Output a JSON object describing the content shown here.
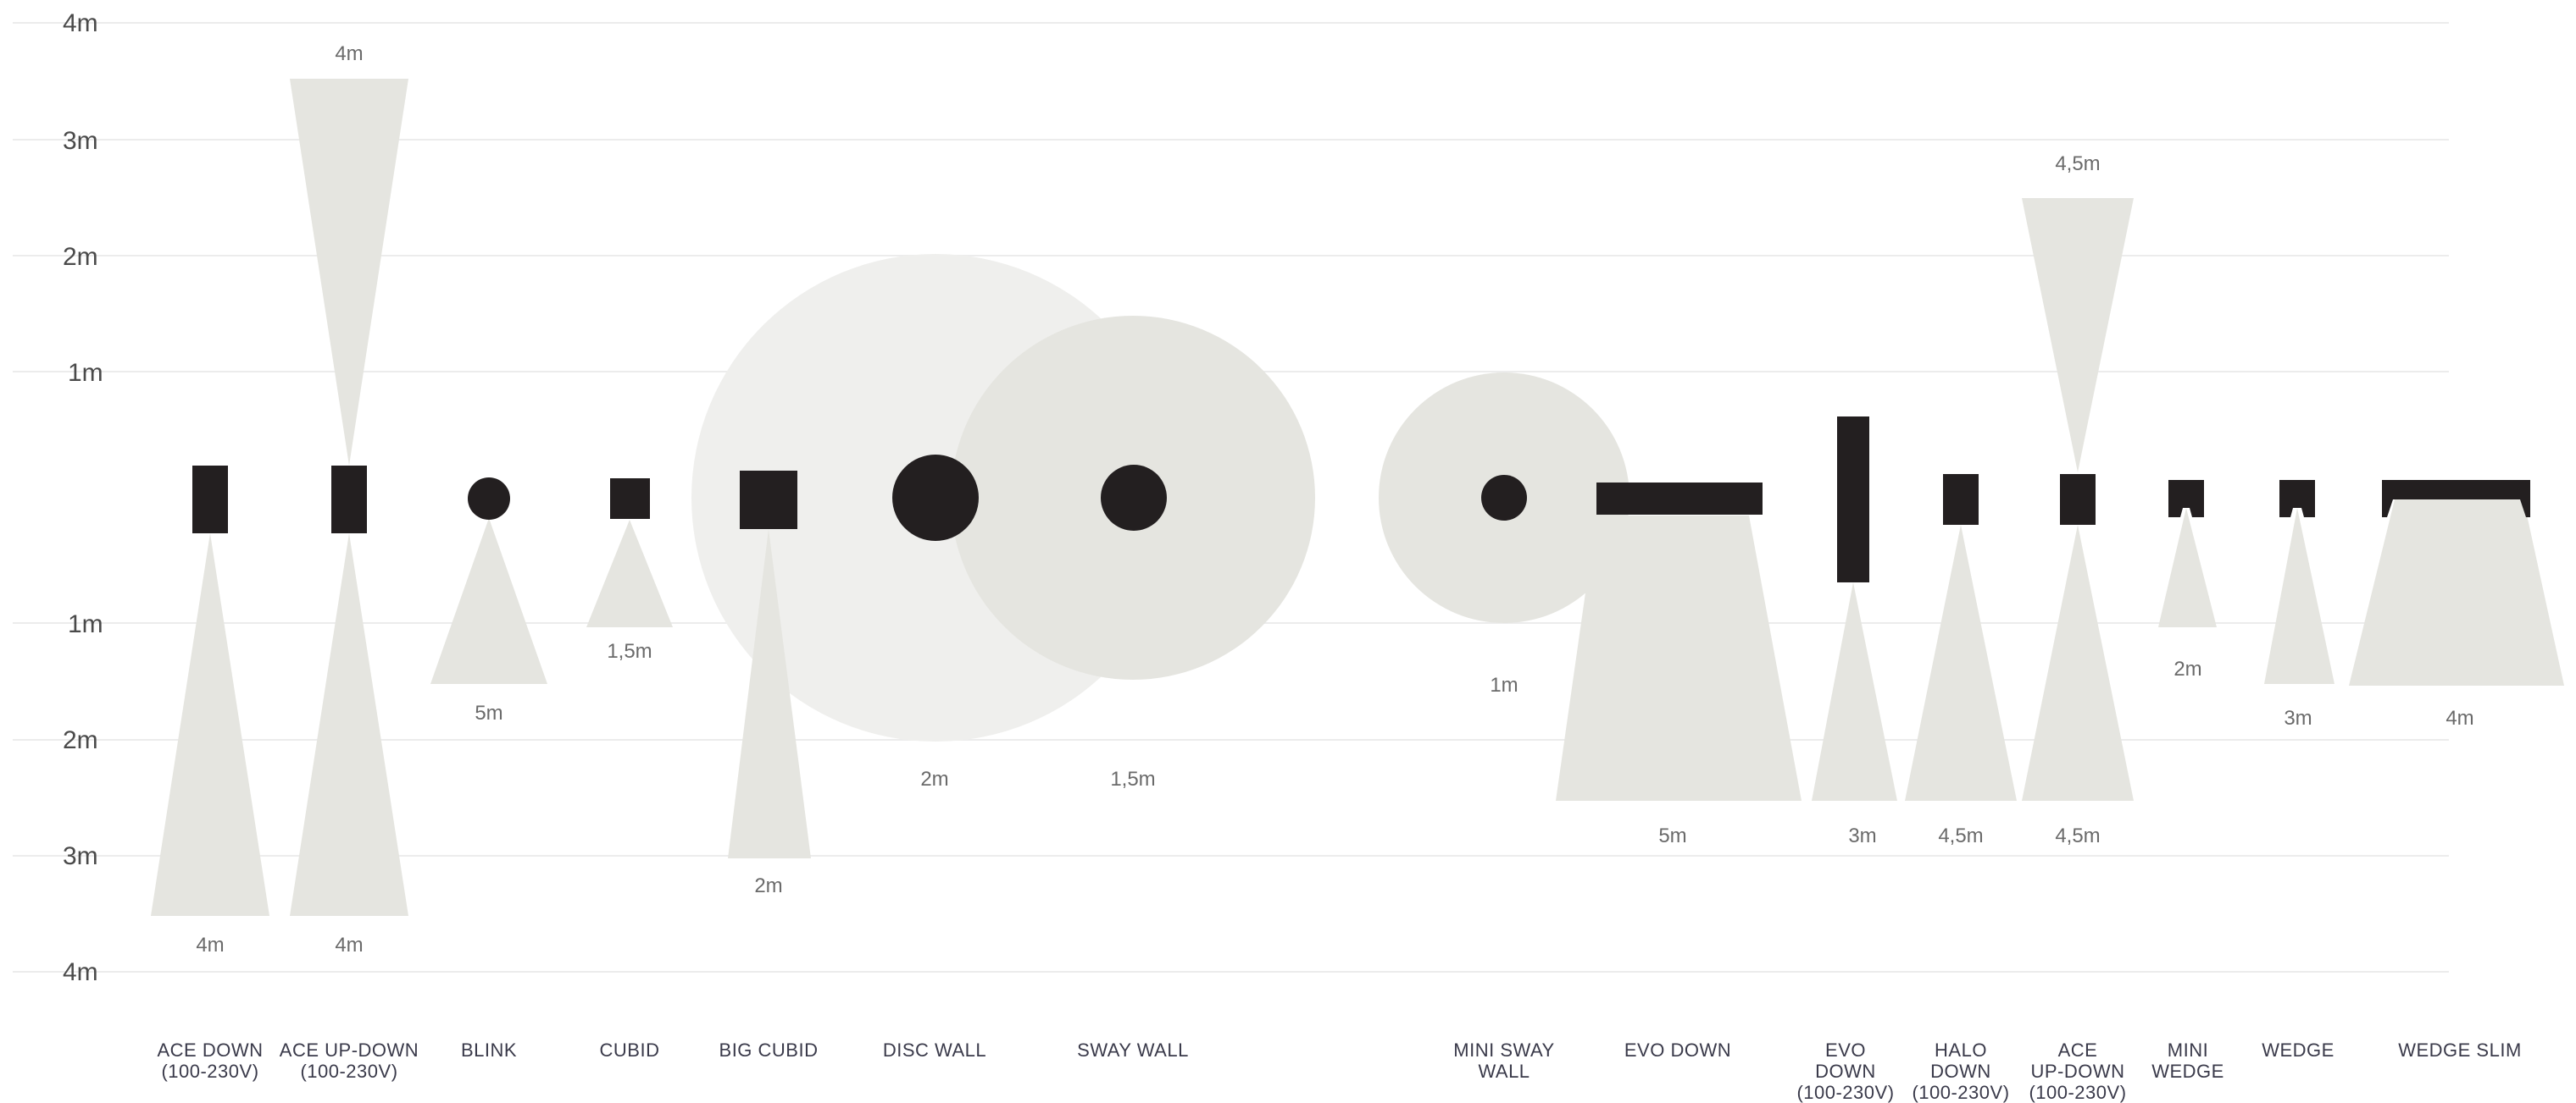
{
  "axis": {
    "up_ticks": [
      "4m",
      "3m",
      "2m",
      "1m"
    ],
    "down_ticks": [
      "1m",
      "2m",
      "3m",
      "4m"
    ]
  },
  "colors": {
    "beam": "#e5e5e0",
    "beam_light": "#efefed",
    "fixture": "#231f20"
  },
  "products": [
    {
      "id": "ace-down",
      "name_lines": [
        "ACE DOWN",
        "(100-230V)"
      ],
      "down_label": "4m"
    },
    {
      "id": "ace-up-down",
      "name_lines": [
        "ACE UP-DOWN",
        "(100-230V)"
      ],
      "up_label": "4m",
      "down_label": "4m"
    },
    {
      "id": "blink",
      "name_lines": [
        "BLINK"
      ],
      "down_label": "5m"
    },
    {
      "id": "cubid",
      "name_lines": [
        "CUBID"
      ],
      "down_label": "1,5m"
    },
    {
      "id": "big-cubid",
      "name_lines": [
        "BIG CUBID"
      ],
      "down_label": "2m"
    },
    {
      "id": "disc-wall",
      "name_lines": [
        "DISC WALL"
      ],
      "down_label": "2m"
    },
    {
      "id": "sway-wall",
      "name_lines": [
        "SWAY WALL"
      ],
      "down_label": "1,5m"
    },
    {
      "id": "mini-sway-wall",
      "name_lines": [
        "MINI SWAY",
        "WALL"
      ],
      "down_label": "1m"
    },
    {
      "id": "evo-down",
      "name_lines": [
        "EVO DOWN"
      ],
      "down_label": "5m"
    },
    {
      "id": "evo-down-230",
      "name_lines": [
        "EVO",
        "DOWN",
        "(100-230V)"
      ],
      "down_label": "3m"
    },
    {
      "id": "halo-down",
      "name_lines": [
        "HALO",
        "DOWN",
        "(100-230V)"
      ],
      "down_label": "4,5m"
    },
    {
      "id": "ace-up-down-2",
      "name_lines": [
        "ACE",
        "UP-DOWN",
        "(100-230V)"
      ],
      "up_label": "4,5m",
      "down_label": "4,5m"
    },
    {
      "id": "mini-wedge",
      "name_lines": [
        "MINI",
        "WEDGE"
      ],
      "down_label": "2m"
    },
    {
      "id": "wedge",
      "name_lines": [
        "WEDGE"
      ],
      "down_label": "3m"
    },
    {
      "id": "wedge-slim",
      "name_lines": [
        "WEDGE SLIM"
      ],
      "down_label": "4m"
    }
  ]
}
